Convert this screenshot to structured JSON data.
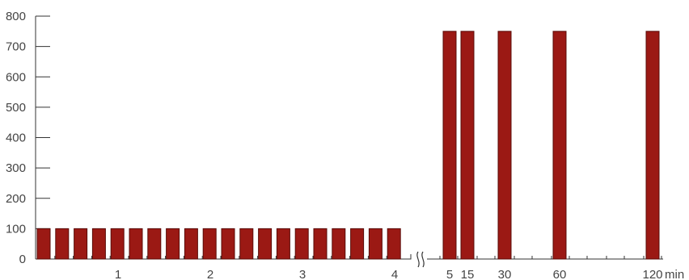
{
  "chart_data": {
    "type": "bar",
    "title": "",
    "xlabel": "",
    "ylabel": "",
    "ylim": [
      0,
      800
    ],
    "y_ticks": [
      0,
      100,
      200,
      300,
      400,
      500,
      600,
      700,
      800
    ],
    "grid": false,
    "legend": "none",
    "x_unit": "min",
    "colors": {
      "bar": "#9b1914",
      "bar_edge": "#5a0c09",
      "axis": "#333333",
      "text": "#444444"
    },
    "segment_1": {
      "x_tick_labels": [
        "1",
        "2",
        "3",
        "4"
      ],
      "bar_count": 20,
      "values": [
        100,
        100,
        100,
        100,
        100,
        100,
        100,
        100,
        100,
        100,
        100,
        100,
        100,
        100,
        100,
        100,
        100,
        100,
        100,
        100
      ]
    },
    "segment_2": {
      "x_tick_labels": [
        "5",
        "15",
        "30",
        "60",
        "120"
      ],
      "values": [
        750,
        750,
        750,
        750,
        750
      ]
    }
  }
}
